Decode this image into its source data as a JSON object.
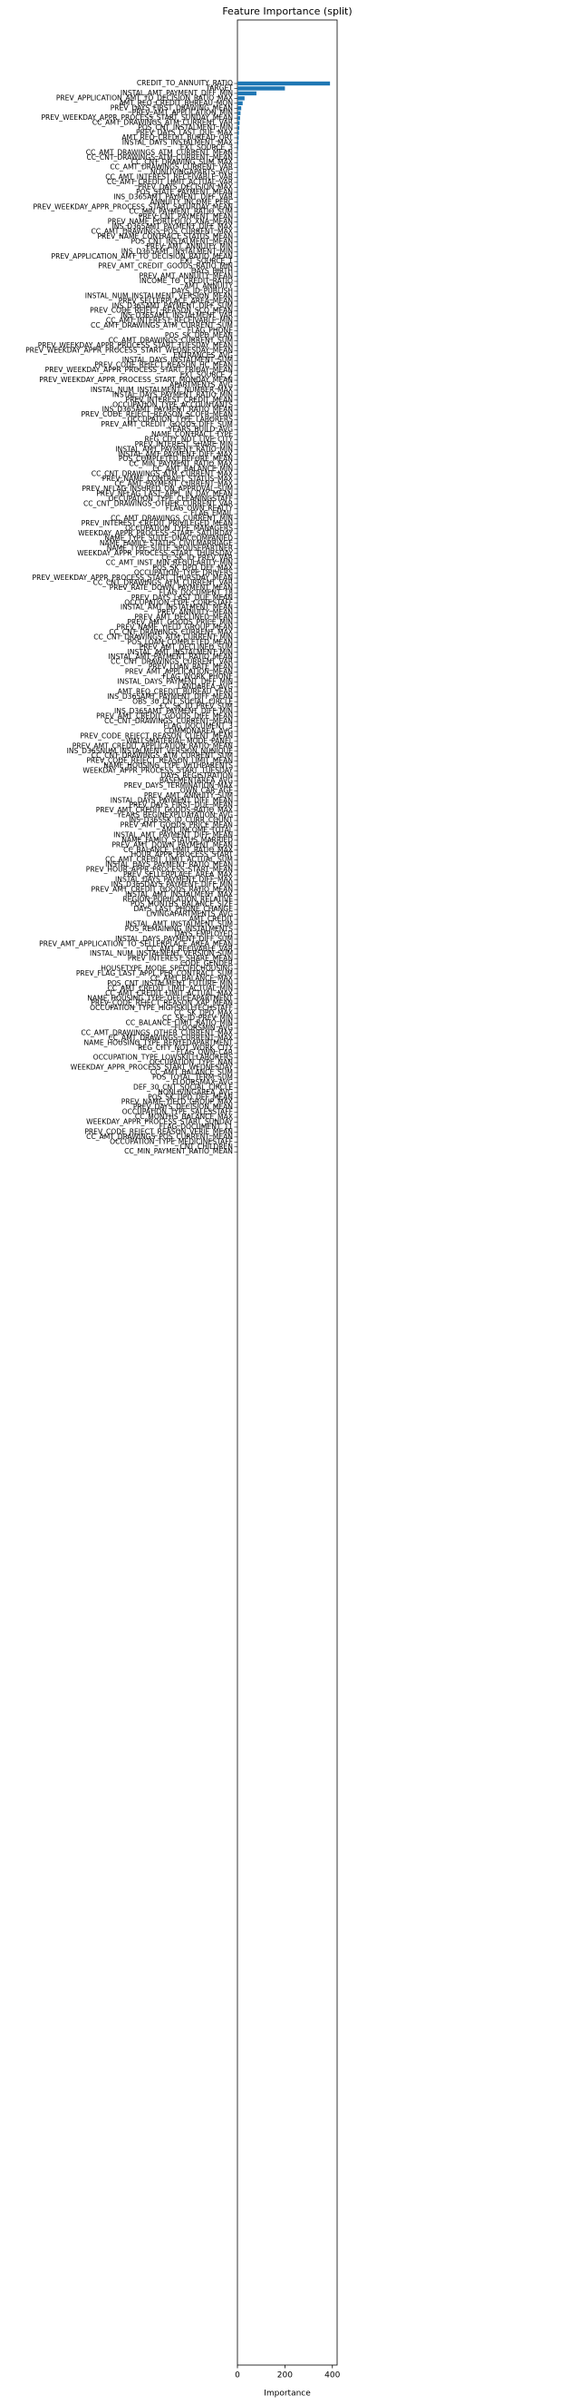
{
  "chart_data": {
    "type": "barh",
    "title": "Feature Importance (split)",
    "xlabel": "Importance",
    "color": "#1f77b4",
    "xlim": [
      0,
      420
    ],
    "xticks": [
      0,
      200,
      400
    ],
    "categories": [
      "CREDIT_TO_ANNUITY_RATIO",
      "TARGET",
      "INSTAL_AMT_PAYMENT_DIFF_MIN",
      "PREV_APPLICATION_AMT_TO_DECISION_RATIO_MAX",
      "AMT_REQ_CREDIT_BUREAU_MON",
      "PREV_DAYS_FIRST_DRAWING_MEAN",
      "PREV_AMT_APPLICATION_MIN",
      "PREV_WEEKDAY_APPR_PROCESS_START_SUNDAY_MEAN",
      "CC_AMT_DRAWINGS_ATM_CURRENT_VAR",
      "POS_CNT_INSTALMENT_MIN",
      "PREV_DAYS_LAST_DUE_MAX",
      "AMT_REQ_CREDIT_BUREAU_QRT",
      "INSTAL_DAYS_INSTALMENT_MAX",
      "EXT_SOURCE_3",
      "CC_AMT_DRAWINGS_ATM_CURRENT_MEAN",
      "CC_CNT_DRAWINGS_ATM_CURRENT_MEAN",
      "CC_CNT_DRAWING_SUM_MAX",
      "CC_AMT_DRAWINGS_CURRENT_VAR",
      "NONLIVINGAPARTS_AVG",
      "CC_AMT_INTEREST_RECEIVABLE_VAR",
      "CC_AMT_CREDIT_LIMIT_ACTUAL_VAR",
      "PREV_DAYS_DECISION_MAX",
      "POS_STATE_PAYMENT_MEAN",
      "INS_D365AMT_PAYMENT_DIFF_VAR",
      "ANNUITY_INCOME_PERC",
      "PREV_WEEKDAY_APPR_PROCESS_START_SATURDAY_MEAN",
      "CC_MIN_PAYMENT_RATIO_SUM",
      "PREV_CNT_PAYMENT_MEAN",
      "PREV_NAME_PORTFOLIO_XNA_MEAN",
      "INS_D365AMT_PAYMENT_DIFF_MAX",
      "CC_AMT_DRAWINGS_POS_CURRENT_MAX",
      "PREV_NAME_CONTRACT_STATUS_MEAN",
      "POS_CNT_INSTALMENT_MEAN",
      "PREV_AMT_ANNUITY_MIN",
      "INS_D365AMT_INSTALMENT_MIN",
      "PREV_APPLICATION_AMT_TO_DECISION_RATIO_MEAN",
      "EXT_SOURCE_1",
      "PREV_AMT_CREDIT_GOODS_RATIO_MIN",
      "DAYS_BIRTH",
      "PREV_AMT_ANNUITY_MEAN",
      "INCOME_TO_CREDIT_RATIO",
      "AMT_ANNUITY",
      "DAYS_ID_PUBLISH",
      "INSTAL_NUM_INSTALMENT_VERSION_MEAN",
      "PREV_SELLERPLACE_AREA_MEAN",
      "INS_D365AMT_PAYMENT_DIFF_SUM",
      "PREV_CODE_REJECT_REASON_SCO_MEAN",
      "INS_D365AMT_INSTALMENT_VAR",
      "CC_AMT_INTEREST_RECEIVABLE_MIN",
      "CC_AMT_DRAWINGS_ATM_CURRENT_SUM",
      "FLAG_PHONE",
      "POS_SK_DPD_MEAN",
      "CC_AMT_DRAWINGS_CURRENT_SUM",
      "PREV_WEEKDAY_APPR_PROCESS_START_TUESDAY_MEAN",
      "PREV_WEEKDAY_APPR_PROCESS_START_WEDNESDAY_MEAN",
      "ENTRANCES_AVG",
      "INSTAL_DAYS_INSTALMENT_SUM",
      "PREV_CODE_REJECT_REASON_HC_MEAN",
      "PREV_WEEKDAY_APPR_PROCESS_START_FRIDAY_MEAN",
      "EXT_SOURCE_2",
      "PREV_WEEKDAY_APPR_PROCESS_START_MONDAY_MEAN",
      "APARTMENTS_AVG",
      "INSTAL_NUM_INSTALMENT_NUMBER_MAX",
      "INSTAL_DAYS_PAYMENT_RATIO_MIN",
      "PREV_INTEREST_CREDIT_MEAN",
      "OCCUPATION_TYPE_ACCOUNTANTS",
      "INS_D365AMT_PAYMENT_RATIO_MEAN",
      "PREV_CODE_REJECT_REASON_SCOFR_MEAN",
      "OCCUPATION_TYPE_LABORERS",
      "PREV_AMT_CREDIT_GOODS_DIFF_SUM",
      "YEARS_BUILD_AVG",
      "NAME_CONTRACT_TYPE",
      "REG_CITY_NOT_LIVE_CITY",
      "PREV_INTEREST_SHARE_MIN",
      "INSTAL_AMT_PAYMENT_RATIO_MIN",
      "INSTAL_AMT_PAYMENT_DIFF_MAX",
      "POS_COMPLETED_BEFORE_MEAN",
      "CC_MIN_PAYMENT_RATIO_MAX",
      "CC_AMT_BALANCE_MIN",
      "CC_CNT_DRAWINGS_ATM_CURRENT_MAX",
      "PREV_NAME_CONTRACT_STATUS_MAX",
      "CC_AMT_PAYMENT_CURRENT_MAX",
      "PREV_NFLAG_INSURED_ON_APPROVAL_SUM",
      "PREV_NFLAG_LAST_APPL_IN_DAY_MEAN",
      "OCCUPATION_TYPE_CLEANINGSTAFF",
      "CC_CNT_DRAWINGS_OTHER_CURRENT_VAR",
      "FLAG_OWN_REALTY",
      "FLAG_EMAIL",
      "CC_AMT_DRAWINGS_CURRENT_MIN",
      "PREV_INTEREST_CREDIT_PRIVILEGED_MEAN",
      "OCCUPATION_TYPE_MANAGERS",
      "WEEKDAY_APPR_PROCESS_START_SATURDAY",
      "NAME_TYPE_SUITE_UNACCOMPANIED",
      "NAME_FAMILY_STATUS_CIVILMARRIAGE",
      "NAME_TYPE_SUITE_SPOUSEPARTNER",
      "WEEKDAY_APPR_PROCESS_START_THURSDAY",
      "CC_SK_ID_PREV_VAR",
      "CC_AMT_INST_MIN_REGULARITY_MIN",
      "POS_SK_DPD_DEF_MAX",
      "OCCUPATION_TYPE_DRIVERS",
      "PREV_WEEKDAY_APPR_PROCESS_START_THURSDAY_MEAN",
      "CC_CNT_DRAWINGS_ATM_CURRENT_VAR",
      "PREV_RATE_DOWN_PAYMENT_MEAN",
      "FLAG_DOCUMENT_18",
      "PREV_DAYS_LAST_DUE_MEAN",
      "OCCUPATION_TYPE_CORESTAFF",
      "INSTAL_AMT_INSTALMENT_MEAN",
      "PREV_ANNUITY_MEAN",
      "PREV_AMT_DECLINED_MEAN",
      "PREV_AMT_GOODS_PRICE_MIN",
      "PREV_NAME_YIELD_GROUP_MEAN",
      "CC_CNT_DRAWINGS_CURRENT_MAX",
      "CC_CNT_DRAWINGS_ATM_CURRENT_MIN",
      "POS_LOAN_COMPLETED_MEAN",
      "PREV_AMT_DECLINED_SUM",
      "INSTAL_AMT_INSTALMENT_MIN",
      "INSTAL_AMT_PAYMENT_RATIO_MEAN",
      "CC_CNT_DRAWINGS_CURRENT_VAR",
      "PREV_LOAN_RATE_MEAN",
      "PREV_AMT_APPLICATION_MEAN",
      "FLAG_WORK_PHONE",
      "INSTAL_DAYS_PAYMENT_DIFF_MIN",
      "LANDAREA_AVG",
      "AMT_REQ_CREDIT_BUREAU_YEAR",
      "INS_D365AMT_PAYMENT_DIFF_MEAN",
      "OBS_30_CNT_SOCIAL_CIRCLE",
      "CC_SK_ID_PREV_SUM",
      "INS_D365AMT_PAYMENT_DIFF_MIN",
      "PREV_AMT_CREDIT_GOODS_DIFF_MEAN",
      "CC_CNT_DRAWINGS_CURRENT_MEAN",
      "FLAG_DOCUMENT_3",
      "COMMONAREA_AVG",
      "PREV_CODE_REJECT_REASON_CLIENT_MEAN",
      "WALLSMATERIAL_MODE_PANEL",
      "PREV_AMT_CREDIT_APPLICATION_RATIO_MEAN",
      "INS_D365NUM_INSTALMENT_VERSION_NUNIQUE",
      "CC_CNT_DRAWINGS_ATM_CURRENT_SUM",
      "PREV_CODE_REJECT_REASON_LIMIT_MEAN",
      "NAME_HOUSING_TYPE_WITHPARENTS",
      "WEEKDAY_APPR_PROCESS_START_TUESDAY",
      "DAYS_REGISTRATION",
      "BASEMENTAREA_AVG",
      "PREV_DAYS_TERMINATION_MAX",
      "OWN_CAR_AGE",
      "PREV_AMT_ANNUITY_SUM",
      "INSTAL_DAYS_PAYMENT_DIFF_MEAN",
      "PREV_DAYS_FIRST_DUE_MEAN",
      "PREV_AMT_CREDIT_GOODS_RATIO_MAX",
      "YEARS_BEGINEXPLUATATION_AVG",
      "INS_D365SK_ID_CURR_COUNT",
      "PREV_AMT_GOODS_PRICE_MEAN",
      "AMT_INCOME_TOTAL",
      "INSTAL_AMT_PAYMENT_DIFF_MEAN",
      "NAME_FAMILY_STATUS_MARRIED",
      "PREV_AMT_DOWN_PAYMENT_MEAN",
      "CC_BALANCE_LIMIT_RATIO_MAX",
      "HOUR_APPR_PROCESS_START",
      "CC_AMT_CREDIT_LIMIT_ACTUAL_SUM",
      "INSTAL_DAYS_PAYMENT_RATIO_MEAN",
      "PREV_HOUR_APPR_PROCESS_START_MEAN",
      "PREV_SELLERPLACE_AREA_MAX",
      "INSTAL_DAYS_PAYMENT_DIFF_MAX",
      "INS_D365DAYS_PAYMENT_DIFF_MIN",
      "PREV_AMT_CREDIT_GOODS_RATIO_MEAN",
      "INSTAL_AMT_INSTALMENT_MAX",
      "REGION_POPULATION_RELATIVE",
      "POS_MONTHS_BALANCE_SIZE",
      "DAYS_LAST_PHONE_CHANGE",
      "LIVINGAPARTMENTS_AVG",
      "AMT_CREDIT",
      "INSTAL_AMT_INSTALMENT_SUM",
      "POS_REMAINING_INSTALMENTS",
      "DAYS_EMPLOYED",
      "INSTAL_DAYS_PAYMENT_DIFF_SUM",
      "PREV_AMT_APPLICATION_TO_SELLERPLACE_AREA_MEAN",
      "CC_AMT_RECIVABLE_VAR",
      "INSTAL_NUM_INSTALMENT_VERSION_SUM",
      "PREV_INTEREST_SHARE_MEAN",
      "CODE_GENDER",
      "HOUSETYPE_MODE_SPECIFICHOUSING",
      "PREV_FLAG_LAST_APPL_PER_CONTRACT_SUM",
      "CC_AMT_BALANCE_MAX",
      "POS_CNT_INSTALMENT_FUTURE_MIN",
      "CC_AMT_CREDIT_LIMIT_ACTUAL_MIN",
      "CC_AMT_CREDIT_LIMIT_ACTUAL_MAX",
      "NAME_HOUSING_TYPE_OFFICEAPARTMENT",
      "PREV_CODE_REJECT_REASON_XAP_MEAN",
      "OCCUPATION_TYPE_HIGHSKILLTECHSTAFF",
      "CC_SK_DPD_MAX",
      "CC_SK_ID_PREV_MIN",
      "CC_BALANCE_LIMIT_RATIO_MIN",
      "FLOORSMIN_AVG",
      "CC_AMT_DRAWINGS_OTHER_CURRENT_MAX",
      "CC_AMT_DRAWINGS_CURRENT_MAX",
      "NAME_HOUSING_TYPE_RENTEDAPARTMENT",
      "REG_CITY_NOT_WORK_CITY",
      "FLAG_OWN_CAR",
      "OCCUPATION_TYPE_LOWSKILLLABORERS",
      "OCCUPATION_TYPE_NAN",
      "WEEKDAY_APPR_PROCESS_START_WEDNESDAY",
      "CC_AMT_BALANCE_SUM",
      "POS_TOTAL_TERM_SUM",
      "FLOORSMAX_AVG",
      "DEF_30_CNT_SOCIAL_CIRCLE",
      "NONLIVINGAREA_AVG",
      "POS_SK_DPD_DEF_MEAN",
      "PREV_NAME_YIELD_GROUP_MAX",
      "PREV_DAYS_DECISION_MEAN",
      "OCCUPATION_TYPE_SALESSTAFF",
      "CC_MONTHS_BALANCE_MAX",
      "WEEKDAY_APPR_PROCESS_START_SUNDAY",
      "FLAG_DOCUMENT_11",
      "PREV_CODE_REJECT_REASON_VERIF_MEAN",
      "CC_AMT_DRAWINGS_POS_CURRENT_MEAN",
      "OCCUPATION_TYPE_MEDICINESTAFF",
      "CNT_CHILDREN",
      "CC_MIN_PAYMENT_RATIO_MEAN"
    ],
    "values": [
      390,
      200,
      80,
      30,
      22,
      16,
      13,
      11,
      9,
      8,
      6,
      5,
      4,
      3,
      2,
      2,
      2,
      2,
      2,
      2,
      2,
      2,
      2,
      2,
      2,
      2,
      2,
      2,
      2,
      2,
      2,
      2,
      2,
      2,
      2,
      2,
      2,
      2,
      2,
      2,
      1,
      1,
      1,
      1,
      1,
      1,
      1,
      1,
      1,
      1,
      1,
      1,
      1,
      1,
      1,
      1,
      1,
      1,
      1,
      1,
      1,
      1,
      1,
      1,
      1,
      1,
      1,
      1,
      1,
      1,
      1,
      1,
      1,
      1,
      1,
      1,
      1,
      1,
      1,
      1,
      1,
      1,
      1,
      1,
      1,
      1,
      1,
      1,
      1,
      1,
      1,
      1,
      1,
      1,
      1,
      1,
      1,
      1,
      1,
      1,
      1,
      1,
      1,
      1,
      1,
      1,
      1,
      1,
      1,
      1,
      1,
      1,
      1,
      1,
      1,
      1,
      1,
      1,
      1,
      1,
      0,
      0,
      0,
      0,
      0,
      0,
      0,
      0,
      0,
      0,
      0,
      0,
      0,
      0,
      0,
      0,
      0,
      0,
      0,
      0,
      0,
      0,
      0,
      0,
      0,
      0,
      0,
      0,
      0,
      0,
      0,
      0,
      0,
      0,
      0,
      0,
      0,
      0,
      0,
      0,
      0,
      0,
      0,
      0,
      0,
      0,
      0,
      0,
      0,
      0,
      0,
      0,
      0,
      0,
      0,
      0,
      0,
      0,
      0,
      0,
      0,
      0,
      0,
      0,
      0,
      0,
      0,
      0,
      0,
      0,
      0,
      0,
      0,
      0,
      0,
      0,
      0,
      0,
      0,
      0,
      0,
      0,
      0,
      0,
      0,
      0,
      0,
      0,
      0,
      0,
      0,
      0,
      0,
      0,
      0,
      0,
      0
    ]
  }
}
